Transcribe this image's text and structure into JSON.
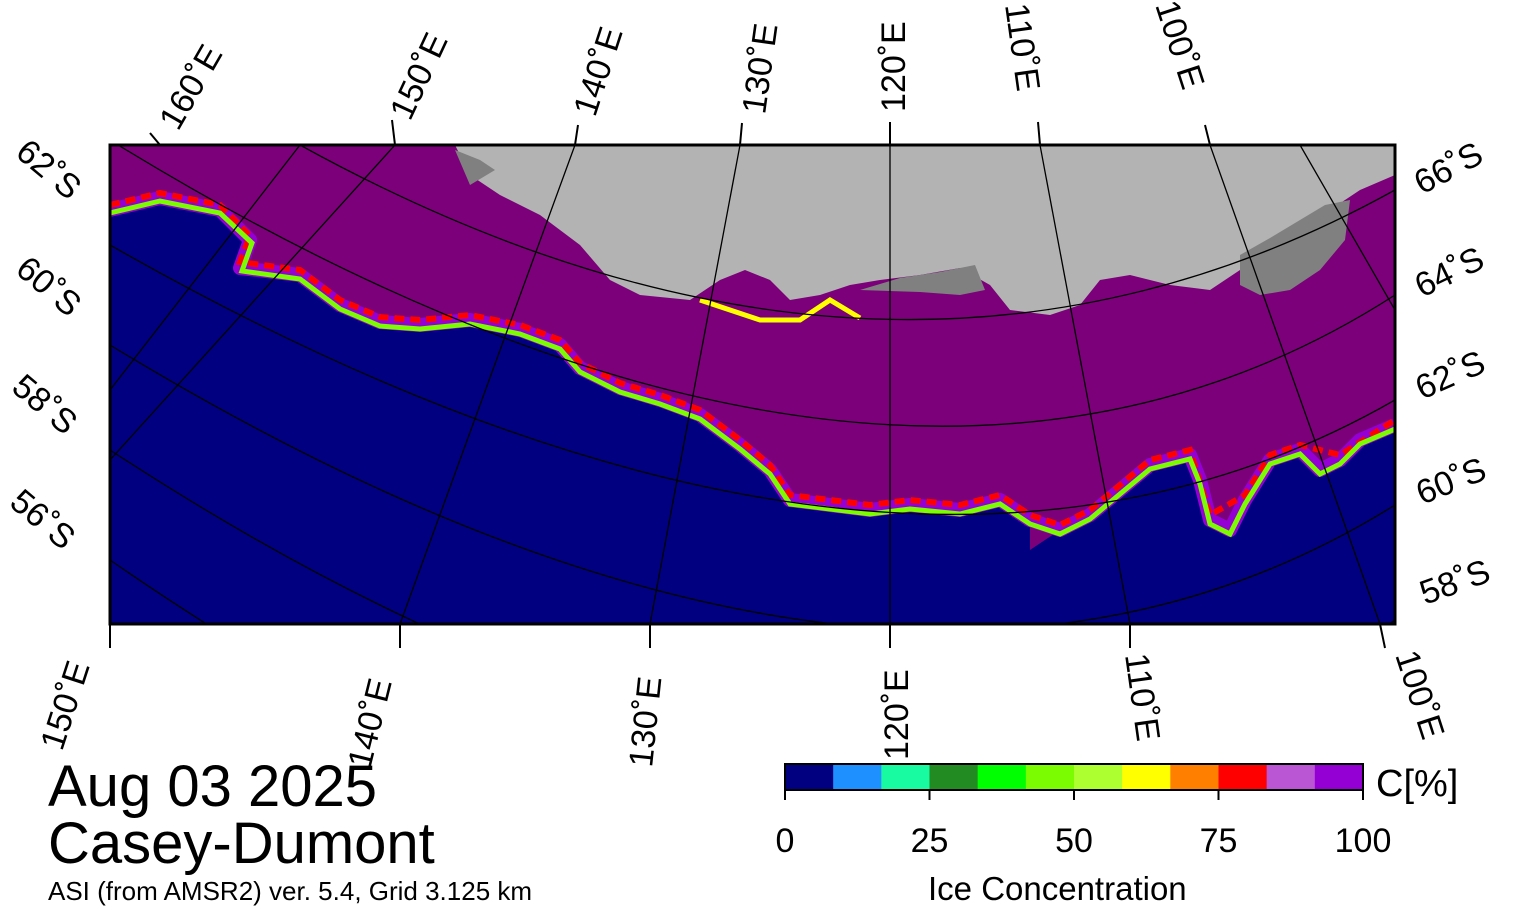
{
  "date": "Aug 03 2025",
  "region": "Casey-Dumont",
  "product": "ASI (from AMSR2) ver. 5.4,  Grid 3.125 km",
  "top_lon_labels": [
    "160˚E",
    "150˚E",
    "140˚E",
    "130˚E",
    "120˚E",
    "110˚E",
    "100˚E"
  ],
  "bottom_lon_labels": [
    "150˚E",
    "140˚E",
    "130˚E",
    "120˚E",
    "110˚E",
    "100˚E"
  ],
  "left_lat_labels": [
    "62˚S",
    "60˚S",
    "58˚S",
    "56˚S"
  ],
  "right_lat_labels": [
    "66˚S",
    "64˚S",
    "62˚S",
    "60˚S",
    "58˚S"
  ],
  "colorbar": {
    "title": "Ice Concentration",
    "unit": "C[%]",
    "ticks": [
      "0",
      "25",
      "50",
      "75",
      "100"
    ],
    "colors": [
      "#000080",
      "#1e90ff",
      "#19fba0",
      "#228b22",
      "#00ff00",
      "#7cfc00",
      "#adff2f",
      "#ffff00",
      "#ff7f00",
      "#ff0000",
      "#ba55d3",
      "#9400d3"
    ]
  },
  "colors": {
    "open_water": "#000080",
    "pack_ice": "#7b0079",
    "land_ice": "#b3b3b3",
    "land_rock": "#808080"
  }
}
